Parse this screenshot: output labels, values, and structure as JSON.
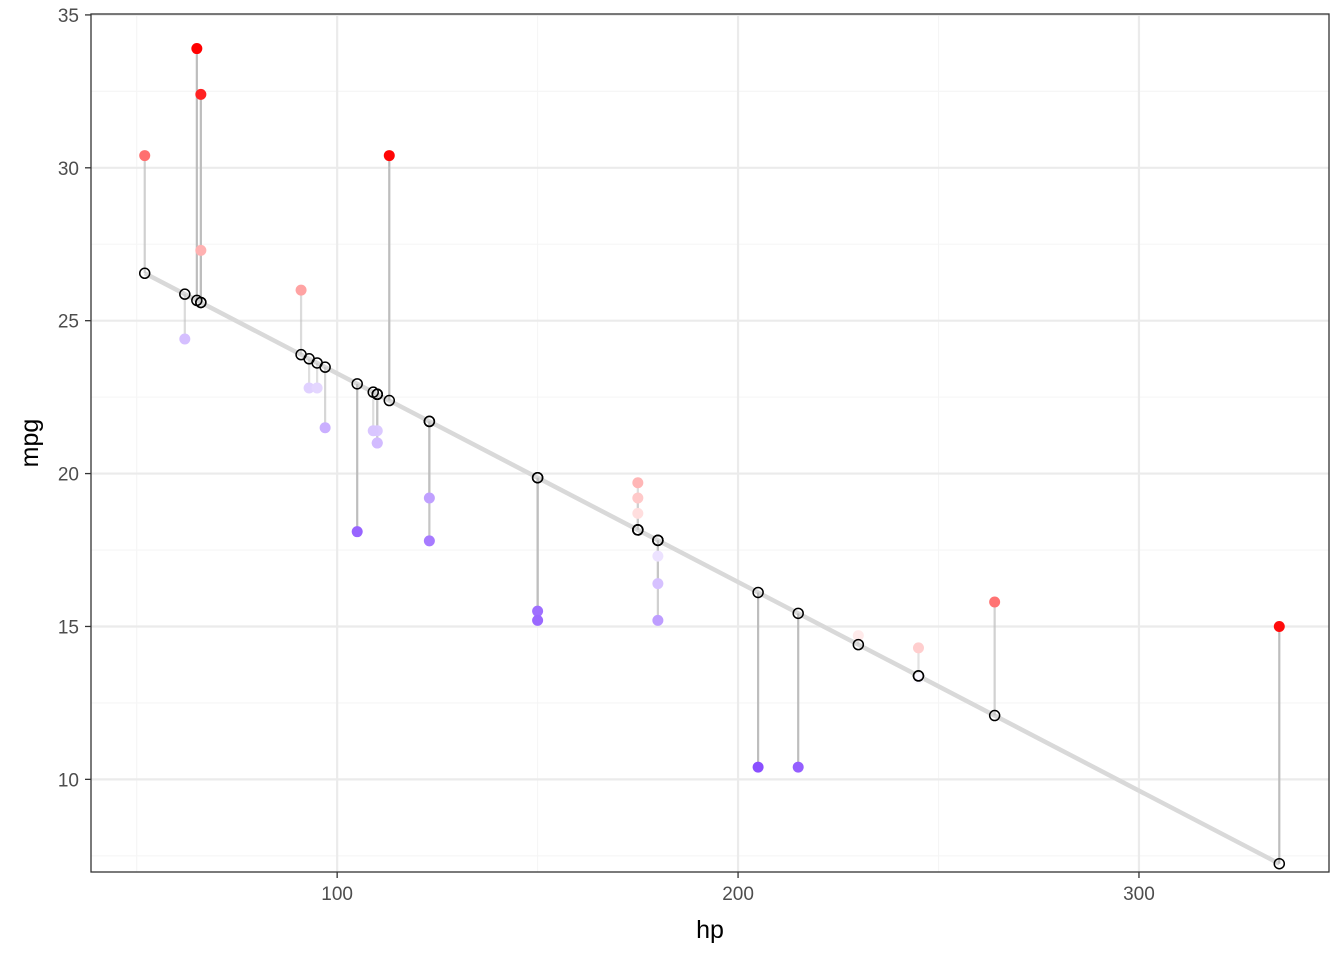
{
  "chart_data": {
    "type": "scatter",
    "title": "",
    "xlabel": "hp",
    "ylabel": "mpg",
    "xlim": [
      38.6,
      347.4
    ],
    "ylim": [
      6.97,
      35.03
    ],
    "x_ticks": [
      100,
      200,
      300
    ],
    "x_tick_labels": [
      "100",
      "200",
      "300"
    ],
    "y_ticks": [
      10,
      15,
      20,
      25,
      30,
      35
    ],
    "y_tick_labels": [
      "10",
      "15",
      "20",
      "25",
      "30",
      "35"
    ],
    "grid": true,
    "legend": "none",
    "regression_line": {
      "intercept": 30.09886,
      "slope": -0.06823
    },
    "colors": {
      "regression_line": "#d9d9d9",
      "residual_segment": "#bdbdbd",
      "fitted_point_stroke": "#000000",
      "positive_max": "#ff0000",
      "negative_max": "#8a4fff",
      "panel_border": "#333333",
      "grid_major": "#ebebeb",
      "grid_minor": "#f5f5f5"
    },
    "points": [
      {
        "hp": 110,
        "mpg": 21.0
      },
      {
        "hp": 110,
        "mpg": 21.0
      },
      {
        "hp": 93,
        "mpg": 22.8
      },
      {
        "hp": 110,
        "mpg": 21.4
      },
      {
        "hp": 175,
        "mpg": 18.7
      },
      {
        "hp": 105,
        "mpg": 18.1
      },
      {
        "hp": 245,
        "mpg": 14.3
      },
      {
        "hp": 62,
        "mpg": 24.4
      },
      {
        "hp": 95,
        "mpg": 22.8
      },
      {
        "hp": 123,
        "mpg": 19.2
      },
      {
        "hp": 123,
        "mpg": 17.8
      },
      {
        "hp": 180,
        "mpg": 16.4
      },
      {
        "hp": 180,
        "mpg": 17.3
      },
      {
        "hp": 180,
        "mpg": 15.2
      },
      {
        "hp": 205,
        "mpg": 10.4
      },
      {
        "hp": 215,
        "mpg": 10.4
      },
      {
        "hp": 230,
        "mpg": 14.7
      },
      {
        "hp": 66,
        "mpg": 32.4
      },
      {
        "hp": 52,
        "mpg": 30.4
      },
      {
        "hp": 65,
        "mpg": 33.9
      },
      {
        "hp": 97,
        "mpg": 21.5
      },
      {
        "hp": 150,
        "mpg": 15.5
      },
      {
        "hp": 150,
        "mpg": 15.2
      },
      {
        "hp": 245,
        "mpg": 13.3
      },
      {
        "hp": 175,
        "mpg": 19.2
      },
      {
        "hp": 66,
        "mpg": 27.3
      },
      {
        "hp": 91,
        "mpg": 26.0
      },
      {
        "hp": 113,
        "mpg": 30.4
      },
      {
        "hp": 264,
        "mpg": 15.8
      },
      {
        "hp": 175,
        "mpg": 19.7
      },
      {
        "hp": 335,
        "mpg": 15.0
      },
      {
        "hp": 109,
        "mpg": 21.4
      }
    ]
  }
}
